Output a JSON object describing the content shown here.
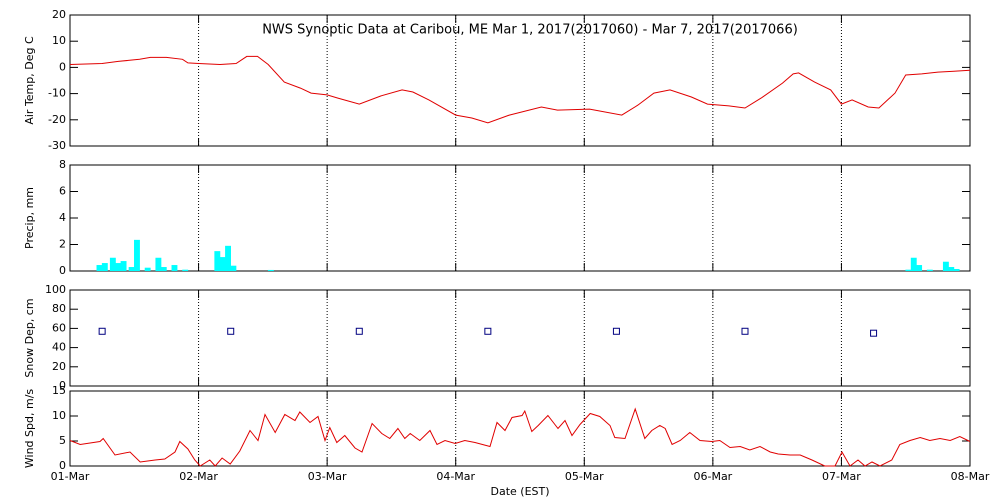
{
  "chart_data": [
    {
      "type": "line",
      "title": "NWS Synoptic Data at Caribou, ME   Mar  1, 2017(2017060) - Mar  7, 2017(2017066)",
      "ylabel": "Air Temp, Deg C",
      "color": "#e00000",
      "x": [
        0,
        6,
        9,
        13,
        15,
        18,
        21,
        22,
        24,
        28,
        31,
        33,
        35,
        37,
        40,
        43,
        45,
        48,
        50,
        54,
        58,
        62,
        64,
        67,
        72,
        75,
        78,
        82,
        88,
        91,
        97,
        103,
        106,
        109,
        112,
        116,
        119,
        123,
        126,
        129,
        133,
        135,
        136,
        139,
        142,
        144,
        146,
        149,
        151,
        154,
        156,
        159,
        162,
        165,
        168
      ],
      "values": [
        1.1,
        1.5,
        2.3,
        3.1,
        3.8,
        3.8,
        3.1,
        1.7,
        1.5,
        1.1,
        1.5,
        4.2,
        4.2,
        1.1,
        -5.6,
        -7.9,
        -9.8,
        -10.5,
        -11.7,
        -14,
        -10.9,
        -8.6,
        -9.4,
        -12.4,
        -18.2,
        -19.3,
        -21.2,
        -18.2,
        -15.1,
        -16.3,
        -15.9,
        -18.2,
        -14.4,
        -9.8,
        -8.6,
        -11.3,
        -14,
        -14.7,
        -15.5,
        -11.7,
        -6,
        -2.5,
        -2.1,
        -5.6,
        -8.6,
        -14,
        -12.4,
        -15.1,
        -15.5,
        -9.8,
        -2.9,
        -2.5,
        -1.8,
        -1.5,
        -1.1
      ],
      "xlim": [
        0,
        168
      ],
      "xticks": [
        0,
        24,
        48,
        72,
        96,
        120,
        144,
        168
      ],
      "ylim": [
        -30,
        20
      ],
      "yticks": [
        -30,
        -20,
        -10,
        0,
        10,
        20
      ]
    },
    {
      "type": "bar",
      "ylabel": "Precip, mm",
      "color": "#00ffff",
      "x": [
        5.5,
        6.5,
        8,
        9,
        10,
        11.5,
        12.5,
        14.5,
        16.5,
        17.5,
        19.5,
        21.5,
        27.5,
        28.5,
        29.5,
        30.5,
        37.5,
        156.5,
        157.5,
        158.5,
        160.5,
        163.5,
        164.5,
        165.5
      ],
      "values": [
        0.45,
        0.6,
        1.0,
        0.6,
        0.75,
        0.3,
        2.35,
        0.25,
        1.0,
        0.3,
        0.45,
        0.1,
        1.5,
        1.05,
        1.9,
        0.4,
        0.08,
        0.1,
        1.0,
        0.45,
        0.1,
        0.7,
        0.3,
        0.15
      ],
      "xlim": [
        0,
        168
      ],
      "xticks": [
        0,
        24,
        48,
        72,
        96,
        120,
        144,
        168
      ],
      "ylim": [
        0,
        8
      ],
      "yticks": [
        0,
        2,
        4,
        6,
        8
      ]
    },
    {
      "type": "scatter",
      "ylabel": "Snow Dep, cm",
      "color": "#000080",
      "x": [
        6,
        30,
        54,
        78,
        102,
        126,
        150
      ],
      "values": [
        57,
        57,
        57,
        57,
        57,
        57,
        55
      ],
      "xlim": [
        0,
        168
      ],
      "xticks": [
        0,
        24,
        48,
        72,
        96,
        120,
        144,
        168
      ],
      "ylim": [
        0,
        100
      ],
      "yticks": [
        0,
        20,
        40,
        60,
        80,
        100
      ]
    },
    {
      "type": "line",
      "ylabel": "Wind Spd, m/s",
      "xlabel": "Date (EST)",
      "color": "#e00000",
      "x": [
        0,
        1.9,
        5.6,
        6.2,
        8.4,
        11.2,
        13.1,
        15.9,
        17.7,
        19.6,
        20.5,
        22,
        23.3,
        24.3,
        26.1,
        27.1,
        28.4,
        29.9,
        31.7,
        33.6,
        35.1,
        36.4,
        38.3,
        40.1,
        42,
        42.9,
        44.8,
        46.3,
        47.6,
        48.5,
        49.8,
        51.3,
        53.2,
        54.5,
        56.4,
        58.2,
        59.7,
        61.2,
        62.5,
        63.5,
        65.3,
        67.2,
        68.5,
        70,
        71.9,
        73.7,
        75.6,
        78.4,
        79.7,
        81.2,
        82.5,
        84.4,
        84.9,
        86.2,
        87.4,
        89.2,
        91.1,
        92.4,
        93.7,
        95.2,
        97.1,
        98.9,
        100.8,
        101.7,
        103.6,
        105.5,
        107.3,
        108.6,
        110.1,
        111.1,
        112.4,
        113.9,
        115.7,
        117.6,
        119.8,
        121.3,
        123.2,
        125.1,
        126.9,
        128.8,
        130.7,
        132.2,
        134.4,
        136.3,
        138.5,
        140.9,
        142.8,
        144.1,
        145.6,
        147.1,
        148.4,
        149.7,
        151.2,
        153.4,
        154.9,
        156.8,
        158.7,
        160.5,
        162.4,
        164.3,
        166.1,
        168
      ],
      "values": [
        5.1,
        4.3,
        4.9,
        5.5,
        2.2,
        2.8,
        0.8,
        1.2,
        1.4,
        2.8,
        4.9,
        3.4,
        1.2,
        0,
        1.2,
        0,
        1.6,
        0.4,
        3,
        7.1,
        5.1,
        10.3,
        6.7,
        10.3,
        9.1,
        10.8,
        8.7,
        9.9,
        5.1,
        7.7,
        4.7,
        6.1,
        3.6,
        2.8,
        8.5,
        6.5,
        5.5,
        7.5,
        5.5,
        6.5,
        5.1,
        7.1,
        4.3,
        5.1,
        4.5,
        5.1,
        4.7,
        3.9,
        8.7,
        7.1,
        9.7,
        10.1,
        11.0,
        6.9,
        8.1,
        10.1,
        7.5,
        9.1,
        6.1,
        8.3,
        10.5,
        9.9,
        8.1,
        5.7,
        5.5,
        11.4,
        5.5,
        7.1,
        8.1,
        7.5,
        4.3,
        5.1,
        6.7,
        5.1,
        4.9,
        5.1,
        3.7,
        3.9,
        3.2,
        3.9,
        2.8,
        2.4,
        2.2,
        2.2,
        1.2,
        0,
        0,
        2.8,
        0,
        1.2,
        0,
        0.8,
        0,
        1.2,
        4.3,
        5.1,
        5.7,
        5.1,
        5.5,
        5.1,
        5.9,
        4.9
      ],
      "xlim": [
        0,
        168
      ],
      "xticks": [
        {
          "value": 0,
          "label": "01-Mar"
        },
        {
          "value": 24,
          "label": "02-Mar"
        },
        {
          "value": 48,
          "label": "03-Mar"
        },
        {
          "value": 72,
          "label": "04-Mar"
        },
        {
          "value": 96,
          "label": "05-Mar"
        },
        {
          "value": 120,
          "label": "06-Mar"
        },
        {
          "value": 144,
          "label": "07-Mar"
        },
        {
          "value": 168,
          "label": "08-Mar"
        }
      ],
      "ylim": [
        0,
        15
      ],
      "yticks": [
        0,
        5,
        10,
        15
      ]
    }
  ]
}
